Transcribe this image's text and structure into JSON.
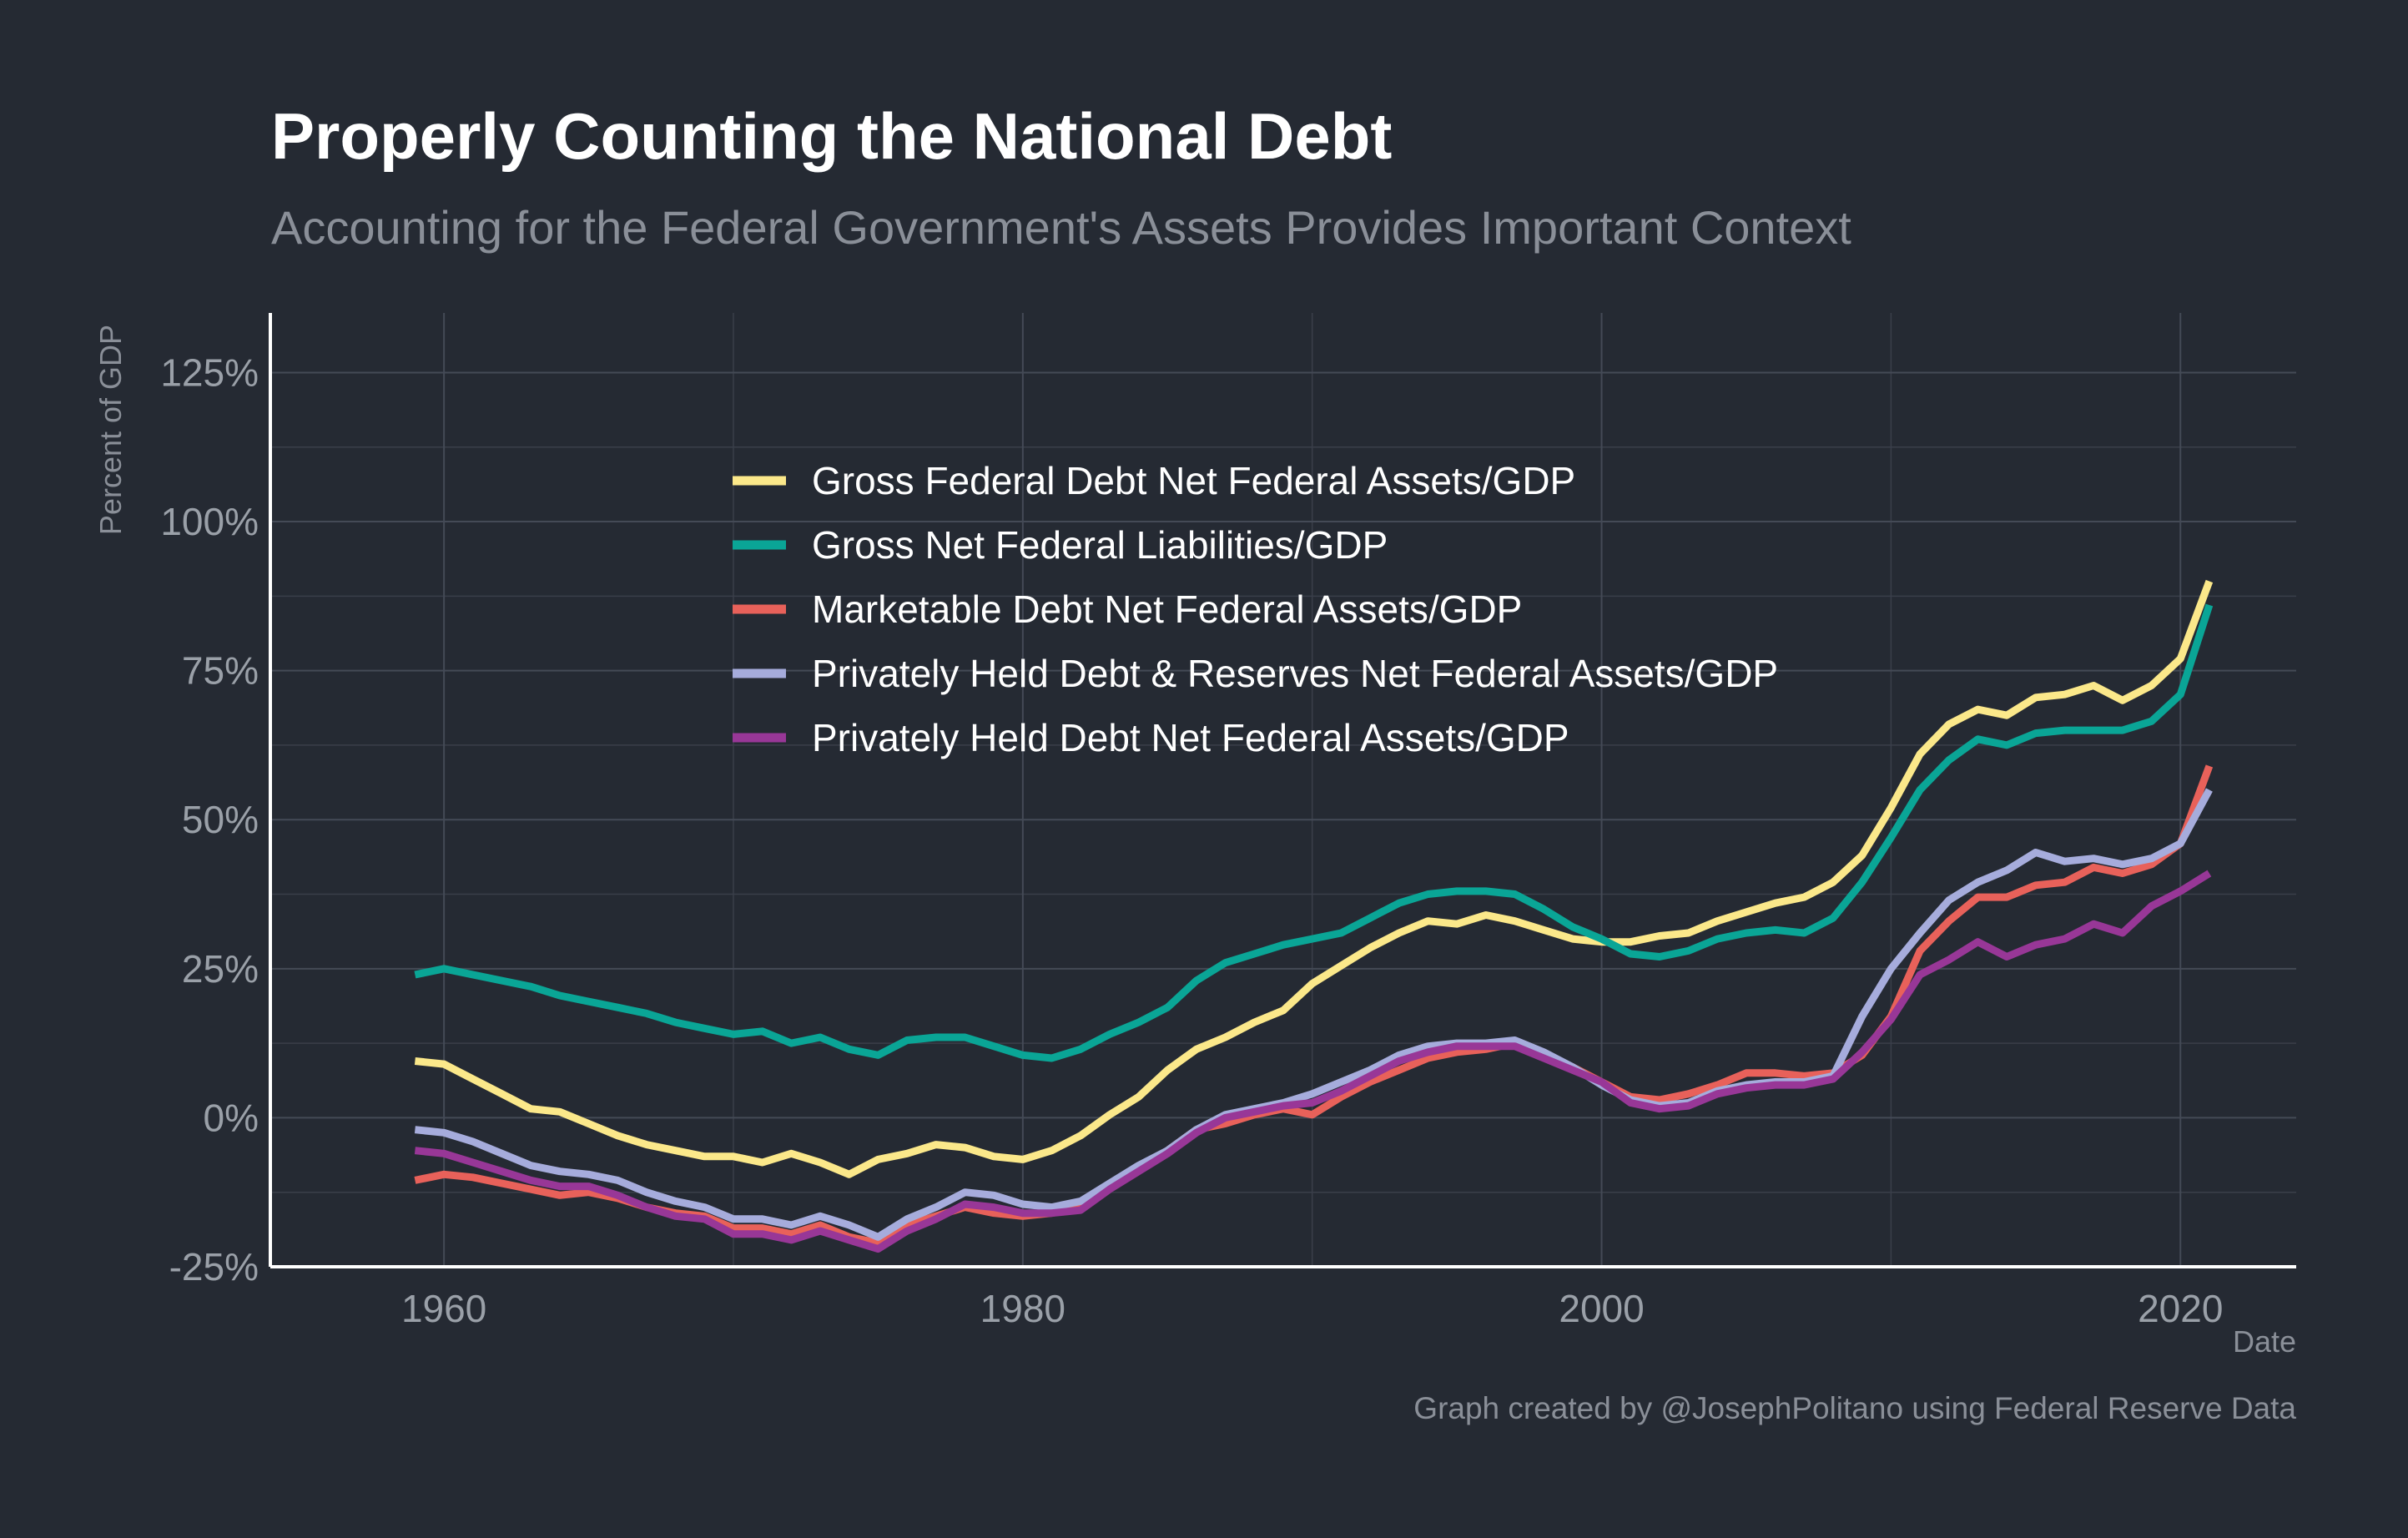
{
  "chart_data": {
    "type": "line",
    "title": "Properly Counting the National Debt",
    "subtitle": "Accounting for the Federal Government's Assets Provides Important Context",
    "xlabel": "Date",
    "ylabel": "Percent of GDP",
    "caption": "Graph created by @JosephPolitano using Federal Reserve Data",
    "xlim": [
      1954,
      2024
    ],
    "ylim": [
      -25,
      135
    ],
    "x_ticks": [
      1960,
      1980,
      2000,
      2020
    ],
    "x_tick_labels": [
      "1960",
      "1980",
      "2000",
      "2020"
    ],
    "y_ticks": [
      -25,
      0,
      25,
      50,
      75,
      100,
      125
    ],
    "y_tick_labels": [
      "-25%",
      "0%",
      "25%",
      "50%",
      "75%",
      "100%",
      "125%"
    ],
    "grid": true,
    "legend_position": "top-center",
    "background_color": "#252a33",
    "x": [
      1959,
      1960,
      1961,
      1962,
      1963,
      1964,
      1965,
      1966,
      1967,
      1968,
      1969,
      1970,
      1971,
      1972,
      1973,
      1974,
      1975,
      1976,
      1977,
      1978,
      1979,
      1980,
      1981,
      1982,
      1983,
      1984,
      1985,
      1986,
      1987,
      1988,
      1989,
      1990,
      1991,
      1992,
      1993,
      1994,
      1995,
      1996,
      1997,
      1998,
      1999,
      2000,
      2001,
      2002,
      2003,
      2004,
      2005,
      2006,
      2007,
      2008,
      2009,
      2010,
      2011,
      2012,
      2013,
      2014,
      2015,
      2016,
      2017,
      2018,
      2019,
      2020,
      2021
    ],
    "series": [
      {
        "name": "Gross Federal Debt Net Federal Assets/GDP",
        "color": "#fbe88a",
        "values": [
          9.5,
          9,
          6.5,
          4,
          1.5,
          1,
          -1,
          -3,
          -4.5,
          -5.5,
          -6.5,
          -6.5,
          -7.5,
          -6,
          -7.5,
          -9.5,
          -7,
          -6,
          -4.5,
          -5,
          -6.5,
          -7,
          -5.5,
          -3,
          0.5,
          3.5,
          8,
          11.5,
          13.5,
          16,
          18,
          22.5,
          25.5,
          28.5,
          31,
          33,
          32.5,
          34,
          33,
          31.5,
          30,
          29.5,
          29.5,
          30.5,
          31,
          33,
          34.5,
          36,
          37,
          39.5,
          44,
          52,
          61,
          66,
          68.5,
          67.5,
          70.5,
          71,
          72.5,
          70,
          72.5,
          77,
          90
        ]
      },
      {
        "name": "Gross Net Federal Liabilities/GDP",
        "color": "#0aa596",
        "values": [
          24,
          25,
          24,
          23,
          22,
          20.5,
          19.5,
          18.5,
          17.5,
          16,
          15,
          14,
          14.5,
          12.5,
          13.5,
          11.5,
          10.5,
          13,
          13.5,
          13.5,
          12,
          10.5,
          10,
          11.5,
          14,
          16,
          18.5,
          23,
          26,
          27.5,
          29,
          30,
          31,
          33.5,
          36,
          37.5,
          38,
          38,
          37.5,
          35,
          32,
          30,
          27.5,
          27,
          28,
          30,
          31,
          31.5,
          31,
          33.5,
          39.5,
          47,
          55,
          60,
          63.5,
          62.5,
          64.5,
          65,
          65,
          65,
          66.5,
          71,
          86
        ]
      },
      {
        "name": "Marketable Debt Net Federal Assets/GDP",
        "color": "#e8615a",
        "values": [
          -10.5,
          -9.5,
          -10,
          -11,
          -12,
          -13,
          -12.5,
          -13.5,
          -15,
          -16,
          -16.5,
          -18.5,
          -18.5,
          -19.5,
          -18,
          -20,
          -21,
          -18,
          -16.5,
          -15,
          -16,
          -16.5,
          -16,
          -15,
          -11.5,
          -8.5,
          -5.5,
          -2,
          -1,
          0.5,
          1.5,
          0.5,
          3.5,
          6,
          8,
          10,
          11,
          11.5,
          12.5,
          10.5,
          8.5,
          6,
          3.5,
          3,
          4,
          5.5,
          7.5,
          7.5,
          7,
          7.5,
          10.5,
          17,
          28,
          33,
          37,
          37,
          39,
          39.5,
          42,
          41,
          42.5,
          46,
          59
        ]
      },
      {
        "name": "Privately Held Debt & Reserves Net Federal Assets/GDP",
        "color": "#a6acdc",
        "values": [
          -2,
          -2.5,
          -4,
          -6,
          -8,
          -9,
          -9.5,
          -10.5,
          -12.5,
          -14,
          -15,
          -17,
          -17,
          -18,
          -16.5,
          -18,
          -20,
          -17,
          -15,
          -12.5,
          -13,
          -14.5,
          -15,
          -14,
          -11,
          -8,
          -5.5,
          -2,
          0.5,
          1.5,
          2.5,
          4,
          6,
          8,
          10.5,
          12,
          12.5,
          12.5,
          13,
          11,
          8.5,
          5.5,
          3,
          2,
          2.5,
          4.5,
          5.5,
          6,
          6,
          7,
          17,
          25,
          31,
          36.5,
          39.5,
          41.5,
          44.5,
          43,
          43.5,
          42.5,
          43.5,
          46,
          55
        ]
      },
      {
        "name": "Privately Held Debt Net Federal Assets/GDP",
        "color": "#983797",
        "values": [
          -5.5,
          -6,
          -7.5,
          -9,
          -10.5,
          -11.5,
          -11.5,
          -13,
          -15,
          -16.5,
          -17,
          -19.5,
          -19.5,
          -20.5,
          -19,
          -20.5,
          -22,
          -19,
          -17,
          -14.5,
          -15,
          -16,
          -16,
          -15.5,
          -12,
          -9,
          -6,
          -2.5,
          0,
          1,
          2,
          2.5,
          4.5,
          7,
          9.5,
          11,
          12,
          12,
          12,
          10,
          8,
          6,
          2.5,
          1.5,
          2,
          4,
          5,
          5.5,
          5.5,
          6.5,
          11,
          16.5,
          24,
          26.5,
          29.5,
          27,
          29,
          30,
          32.5,
          31,
          35.5,
          38,
          41
        ]
      }
    ]
  }
}
